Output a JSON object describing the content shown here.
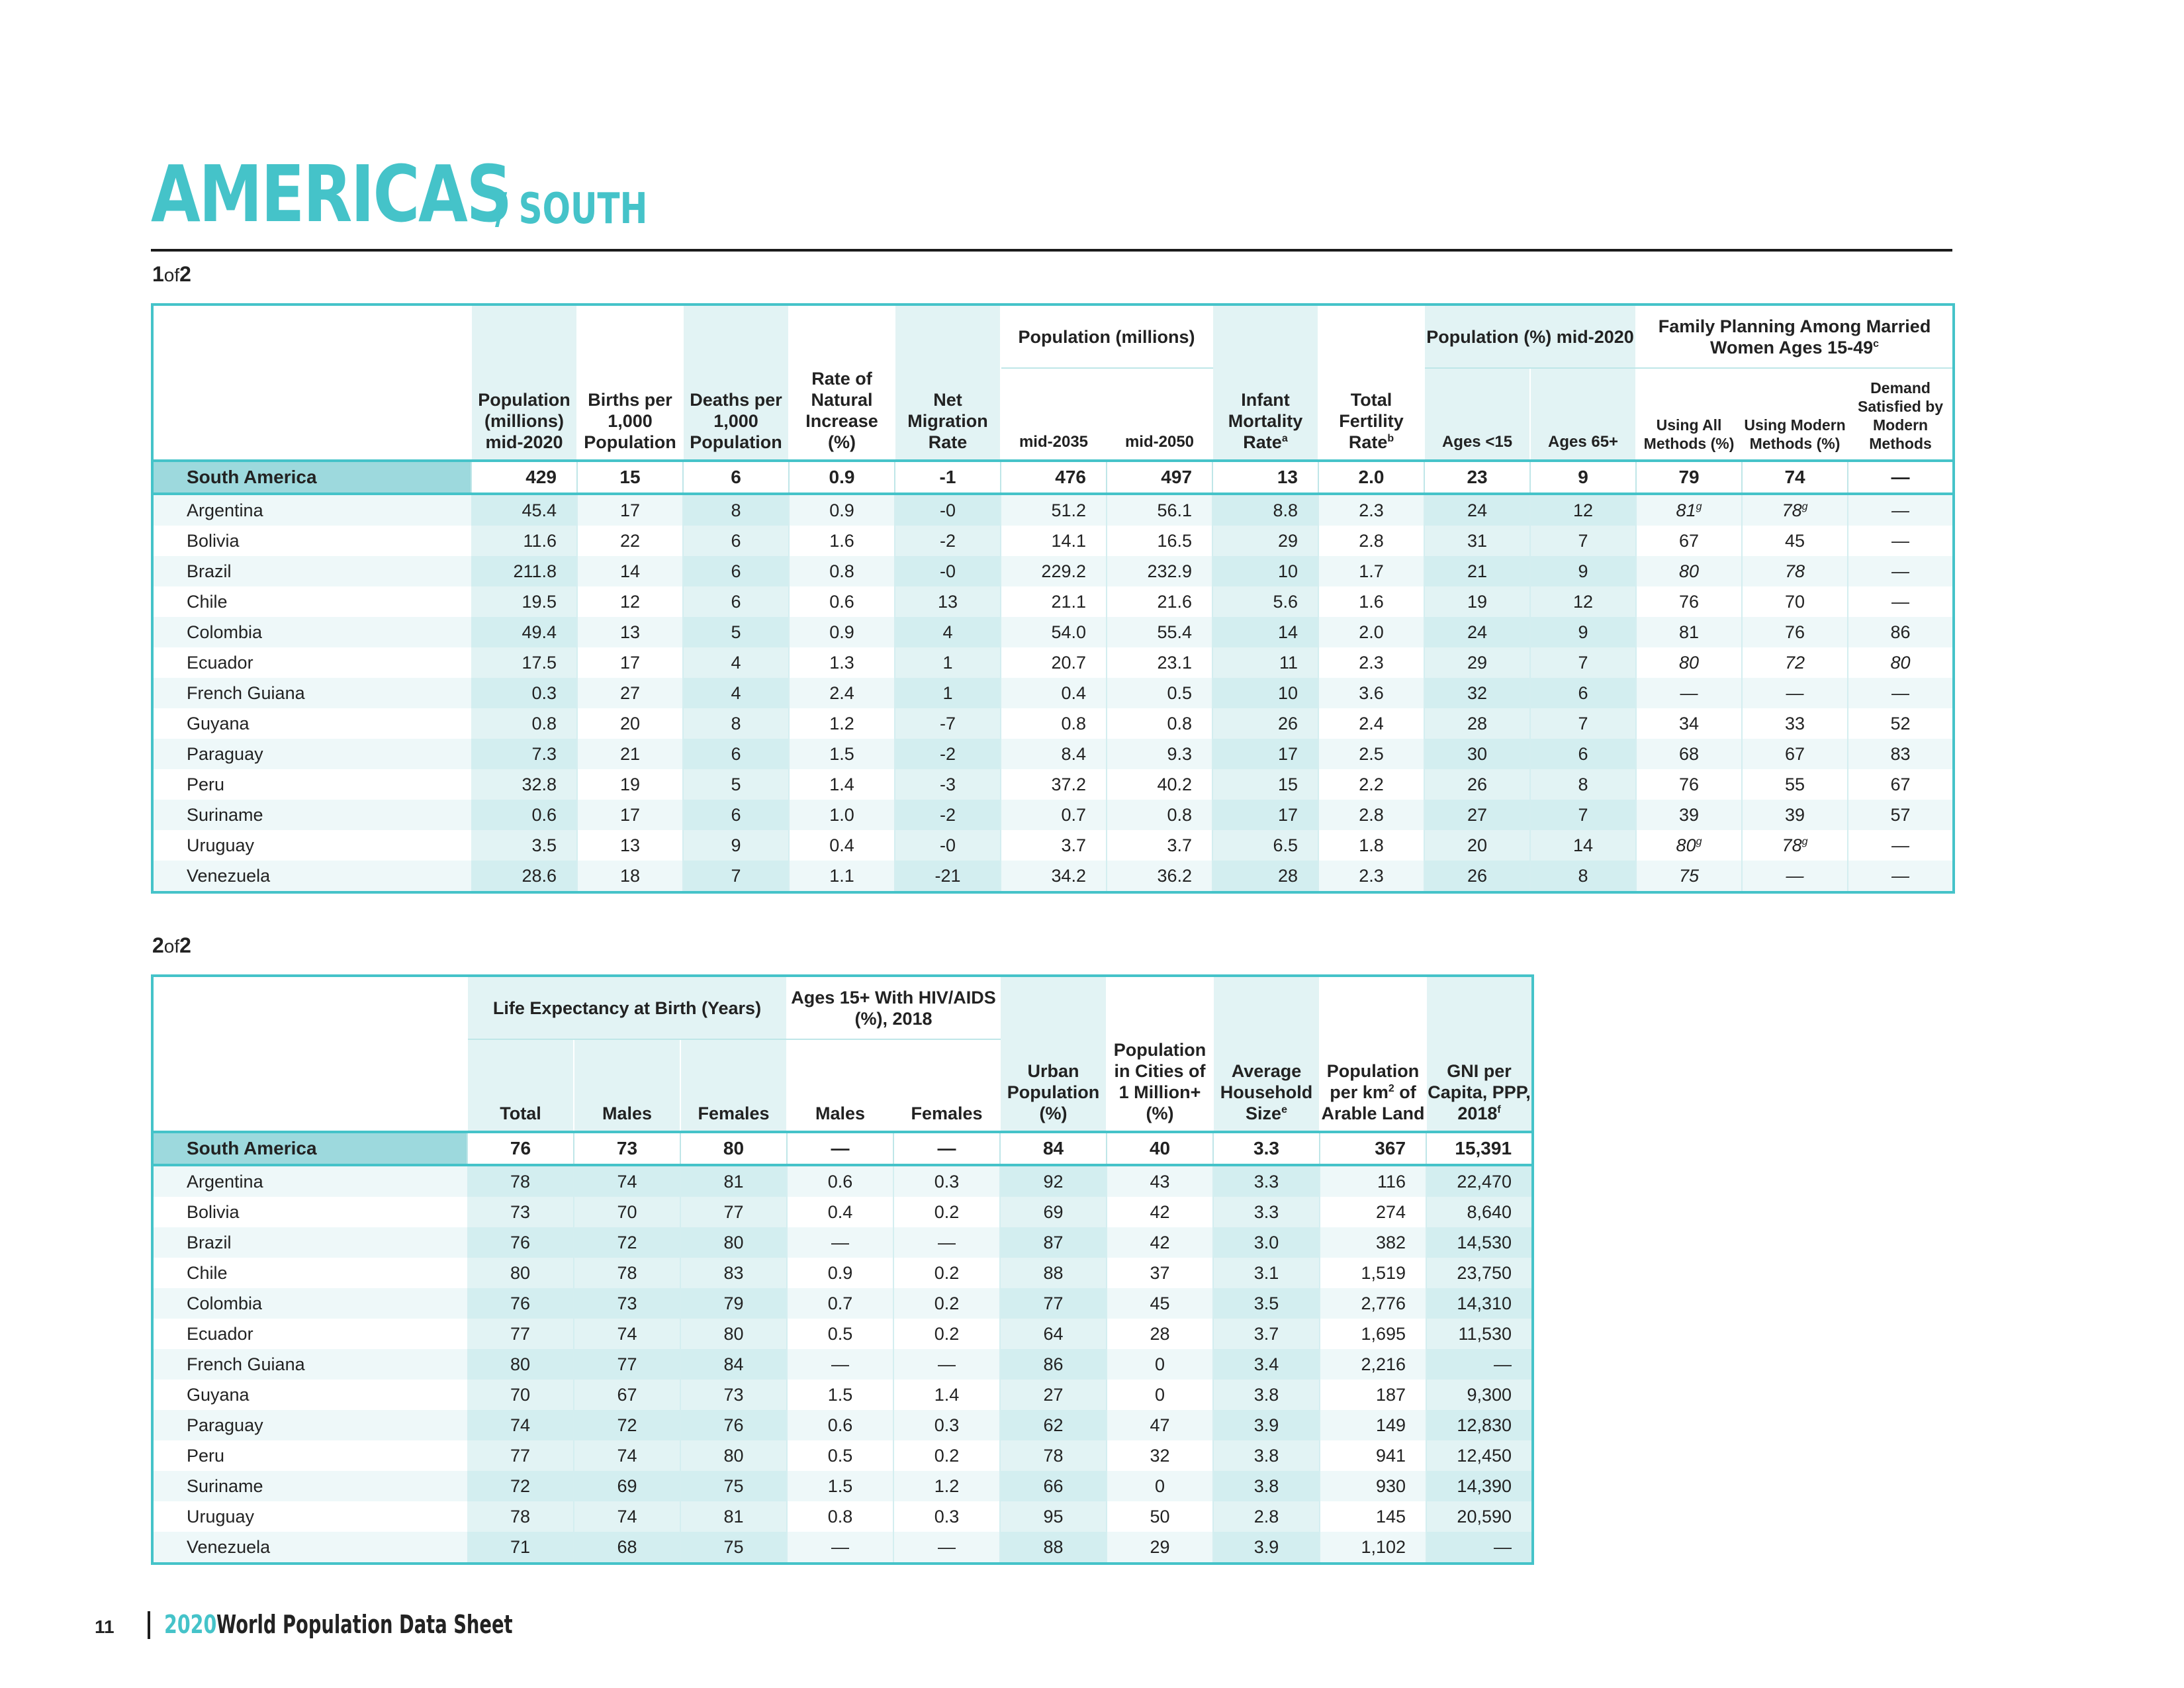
{
  "title": {
    "main": "AMERICAS",
    "sub": "/ SOUTH"
  },
  "part1": {
    "num": "1",
    "of": "of",
    "total": "2"
  },
  "part2": {
    "num": "2",
    "of": "of",
    "total": "2"
  },
  "table1": {
    "groups": {
      "pop_proj": "Population (millions)",
      "pop_age": "Population (%) mid-2020",
      "fp": "Family Planning Among Married Women Ages 15-49",
      "fp_sup": "c"
    },
    "headers": {
      "pop2020": "Population (millions) mid-2020",
      "births": "Births per 1,000 Population",
      "deaths": "Deaths per 1,000 Population",
      "rni": "Rate of Natural Increase (%)",
      "nmr": "Net Migration Rate",
      "mid2035": "mid-2035",
      "mid2050": "mid-2050",
      "imr": "Infant Mortality Rate",
      "imr_sup": "a",
      "tfr": "Total Fertility Rate",
      "tfr_sup": "b",
      "age15": "Ages <15",
      "age65": "Ages 65+",
      "all": "Using All Methods (%)",
      "modern": "Using Modern Methods (%)",
      "demand": "Demand Satisfied by Modern Methods"
    },
    "region": {
      "name": "South America",
      "c": [
        "429",
        "15",
        "6",
        "0.9",
        "-1",
        "476",
        "497",
        "13",
        "2.0",
        "23",
        "9",
        "79",
        "74",
        "—"
      ]
    },
    "rows": [
      {
        "name": "Argentina",
        "c": [
          "45.4",
          "17",
          "8",
          "0.9",
          "-0",
          "51.2",
          "56.1",
          "8.8",
          "2.3",
          "24",
          "12",
          "81",
          "78",
          "—"
        ],
        "s": [
          "",
          "",
          "",
          "",
          "",
          "",
          "",
          "",
          "",
          "",
          "",
          "g",
          "g",
          ""
        ]
      },
      {
        "name": "Bolivia",
        "c": [
          "11.6",
          "22",
          "6",
          "1.6",
          "-2",
          "14.1",
          "16.5",
          "29",
          "2.8",
          "31",
          "7",
          "67",
          "45",
          "—"
        ]
      },
      {
        "name": "Brazil",
        "c": [
          "211.8",
          "14",
          "6",
          "0.8",
          "-0",
          "229.2",
          "232.9",
          "10",
          "1.7",
          "21",
          "9",
          "80",
          "78",
          "—"
        ]
      },
      {
        "name": "Chile",
        "c": [
          "19.5",
          "12",
          "6",
          "0.6",
          "13",
          "21.1",
          "21.6",
          "5.6",
          "1.6",
          "19",
          "12",
          "76",
          "70",
          "—"
        ]
      },
      {
        "name": "Colombia",
        "c": [
          "49.4",
          "13",
          "5",
          "0.9",
          "4",
          "54.0",
          "55.4",
          "14",
          "2.0",
          "24",
          "9",
          "81",
          "76",
          "86"
        ]
      },
      {
        "name": "Ecuador",
        "c": [
          "17.5",
          "17",
          "4",
          "1.3",
          "1",
          "20.7",
          "23.1",
          "11",
          "2.3",
          "29",
          "7",
          "80",
          "72",
          "80"
        ]
      },
      {
        "name": "French Guiana",
        "c": [
          "0.3",
          "27",
          "4",
          "2.4",
          "1",
          "0.4",
          "0.5",
          "10",
          "3.6",
          "32",
          "6",
          "—",
          "—",
          "—"
        ]
      },
      {
        "name": "Guyana",
        "c": [
          "0.8",
          "20",
          "8",
          "1.2",
          "-7",
          "0.8",
          "0.8",
          "26",
          "2.4",
          "28",
          "7",
          "34",
          "33",
          "52"
        ]
      },
      {
        "name": "Paraguay",
        "c": [
          "7.3",
          "21",
          "6",
          "1.5",
          "-2",
          "8.4",
          "9.3",
          "17",
          "2.5",
          "30",
          "6",
          "68",
          "67",
          "83"
        ]
      },
      {
        "name": "Peru",
        "c": [
          "32.8",
          "19",
          "5",
          "1.4",
          "-3",
          "37.2",
          "40.2",
          "15",
          "2.2",
          "26",
          "8",
          "76",
          "55",
          "67"
        ]
      },
      {
        "name": "Suriname",
        "c": [
          "0.6",
          "17",
          "6",
          "1.0",
          "-2",
          "0.7",
          "0.8",
          "17",
          "2.8",
          "27",
          "7",
          "39",
          "39",
          "57"
        ]
      },
      {
        "name": "Uruguay",
        "c": [
          "3.5",
          "13",
          "9",
          "0.4",
          "-0",
          "3.7",
          "3.7",
          "6.5",
          "1.8",
          "20",
          "14",
          "80",
          "78",
          "—"
        ],
        "s": [
          "",
          "",
          "",
          "",
          "",
          "",
          "",
          "",
          "",
          "",
          "",
          "g",
          "g",
          ""
        ]
      },
      {
        "name": "Venezuela",
        "c": [
          "28.6",
          "18",
          "7",
          "1.1",
          "-21",
          "34.2",
          "36.2",
          "28",
          "2.3",
          "26",
          "8",
          "75",
          "—",
          "—"
        ]
      }
    ]
  },
  "table2": {
    "groups": {
      "le": "Life Expectancy at Birth (Years)",
      "hiv": "Ages 15+ With HIV/AIDS (%), 2018"
    },
    "headers": {
      "total": "Total",
      "males": "Males",
      "females": "Females",
      "hiv_m": "Males",
      "hiv_f": "Females",
      "urban": "Urban Population (%)",
      "cities": "Population in Cities of 1 Million+ (%)",
      "hh": "Average Household Size",
      "hh_sup": "e",
      "arable": "Population per km",
      "arable_sup": "2",
      "arable_rest": "of Arable Land",
      "gni": "GNI per Capita, PPP, 2018",
      "gni_sup": "f"
    },
    "region": {
      "name": "South America",
      "c": [
        "76",
        "73",
        "80",
        "—",
        "—",
        "84",
        "40",
        "3.3",
        "367",
        "15,391"
      ]
    },
    "rows": [
      {
        "name": "Argentina",
        "c": [
          "78",
          "74",
          "81",
          "0.6",
          "0.3",
          "92",
          "43",
          "3.3",
          "116",
          "22,470"
        ]
      },
      {
        "name": "Bolivia",
        "c": [
          "73",
          "70",
          "77",
          "0.4",
          "0.2",
          "69",
          "42",
          "3.3",
          "274",
          "8,640"
        ]
      },
      {
        "name": "Brazil",
        "c": [
          "76",
          "72",
          "80",
          "—",
          "—",
          "87",
          "42",
          "3.0",
          "382",
          "14,530"
        ]
      },
      {
        "name": "Chile",
        "c": [
          "80",
          "78",
          "83",
          "0.9",
          "0.2",
          "88",
          "37",
          "3.1",
          "1,519",
          "23,750"
        ]
      },
      {
        "name": "Colombia",
        "c": [
          "76",
          "73",
          "79",
          "0.7",
          "0.2",
          "77",
          "45",
          "3.5",
          "2,776",
          "14,310"
        ]
      },
      {
        "name": "Ecuador",
        "c": [
          "77",
          "74",
          "80",
          "0.5",
          "0.2",
          "64",
          "28",
          "3.7",
          "1,695",
          "11,530"
        ]
      },
      {
        "name": "French Guiana",
        "c": [
          "80",
          "77",
          "84",
          "—",
          "—",
          "86",
          "0",
          "3.4",
          "2,216",
          "—"
        ]
      },
      {
        "name": "Guyana",
        "c": [
          "70",
          "67",
          "73",
          "1.5",
          "1.4",
          "27",
          "0",
          "3.8",
          "187",
          "9,300"
        ]
      },
      {
        "name": "Paraguay",
        "c": [
          "74",
          "72",
          "76",
          "0.6",
          "0.3",
          "62",
          "47",
          "3.9",
          "149",
          "12,830"
        ]
      },
      {
        "name": "Peru",
        "c": [
          "77",
          "74",
          "80",
          "0.5",
          "0.2",
          "78",
          "32",
          "3.8",
          "941",
          "12,450"
        ]
      },
      {
        "name": "Suriname",
        "c": [
          "72",
          "69",
          "75",
          "1.5",
          "1.2",
          "66",
          "0",
          "3.8",
          "930",
          "14,390"
        ]
      },
      {
        "name": "Uruguay",
        "c": [
          "78",
          "74",
          "81",
          "0.8",
          "0.3",
          "95",
          "50",
          "2.8",
          "145",
          "20,590"
        ]
      },
      {
        "name": "Venezuela",
        "c": [
          "71",
          "68",
          "75",
          "—",
          "—",
          "88",
          "29",
          "3.9",
          "1,102",
          "—"
        ]
      }
    ]
  },
  "footer": {
    "page": "11",
    "year": "2020",
    "title": "World Population Data Sheet"
  }
}
